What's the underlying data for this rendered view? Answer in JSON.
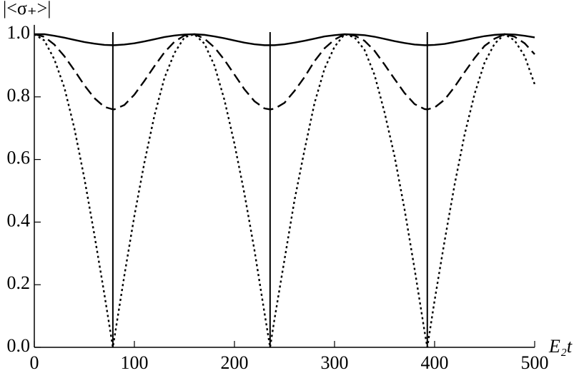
{
  "chart_data": {
    "type": "line",
    "ylabel": "|<σ₊>|",
    "xlabel": "E₂t",
    "x": [
      0,
      10,
      20,
      30,
      40,
      50,
      60,
      70,
      78.5,
      80,
      90,
      100,
      110,
      120,
      130,
      140,
      150,
      160,
      170,
      180,
      190,
      200,
      210,
      220,
      230,
      235.6,
      240,
      250,
      260,
      270,
      280,
      290,
      300,
      310,
      320,
      330,
      340,
      350,
      360,
      370,
      380,
      390,
      392.7,
      400,
      410,
      420,
      430,
      440,
      450,
      460,
      470,
      480,
      490,
      500
    ],
    "series": [
      {
        "color": "#000000",
        "dash": "solid",
        "values": [
          1,
          1.0,
          0.995,
          0.989,
          0.982,
          0.975,
          0.97,
          0.966,
          0.965,
          0.965,
          0.967,
          0.971,
          0.977,
          0.984,
          0.991,
          0.996,
          0.999,
          1,
          0.998,
          0.993,
          0.987,
          0.98,
          0.973,
          0.968,
          0.965,
          0.965,
          0.965,
          0.968,
          0.973,
          0.979,
          0.986,
          0.993,
          0.997,
          1,
          0.999,
          0.997,
          0.992,
          0.985,
          0.978,
          0.972,
          0.967,
          0.965,
          0.965,
          0.966,
          0.969,
          0.975,
          0.981,
          0.988,
          0.994,
          0.998,
          1,
          0.999,
          0.995,
          0.99
        ]
      },
      {
        "color": "#000000",
        "dash": "dashed",
        "values": [
          1,
          0.992,
          0.967,
          0.93,
          0.885,
          0.837,
          0.796,
          0.768,
          0.76,
          0.76,
          0.774,
          0.807,
          0.851,
          0.898,
          0.942,
          0.976,
          0.996,
          1,
          0.986,
          0.958,
          0.918,
          0.871,
          0.824,
          0.786,
          0.763,
          0.76,
          0.762,
          0.781,
          0.819,
          0.863,
          0.914,
          0.955,
          0.983,
          1,
          0.996,
          0.979,
          0.947,
          0.903,
          0.857,
          0.812,
          0.777,
          0.761,
          0.76,
          0.766,
          0.791,
          0.832,
          0.879,
          0.924,
          0.963,
          0.986,
          1,
          0.992,
          0.971,
          0.936
        ]
      },
      {
        "color": "#000000",
        "dash": "dotted",
        "values": [
          1,
          0.98,
          0.92,
          0.83,
          0.7,
          0.54,
          0.36,
          0.17,
          0,
          0.03,
          0.23,
          0.42,
          0.59,
          0.74,
          0.86,
          0.94,
          0.99,
          1,
          0.97,
          0.9,
          0.79,
          0.65,
          0.49,
          0.31,
          0.11,
          0,
          0.09,
          0.28,
          0.47,
          0.63,
          0.78,
          0.89,
          0.96,
          1,
          0.99,
          0.95,
          0.87,
          0.75,
          0.61,
          0.44,
          0.25,
          0.05,
          0,
          0.15,
          0.34,
          0.52,
          0.68,
          0.81,
          0.91,
          0.97,
          1,
          0.98,
          0.93,
          0.84
        ]
      }
    ],
    "vlines": [
      78.5,
      235.6,
      392.7
    ],
    "xlim": [
      0,
      500
    ],
    "xticks": [
      0,
      100,
      200,
      300,
      400,
      500
    ],
    "ylim": [
      0,
      1.03
    ],
    "yticks": [
      {
        "value": 0,
        "label": "0.0"
      },
      0.2,
      0.4,
      0.6,
      0.8,
      {
        "value": 1,
        "label": "1.0"
      }
    ],
    "grid": false
  }
}
